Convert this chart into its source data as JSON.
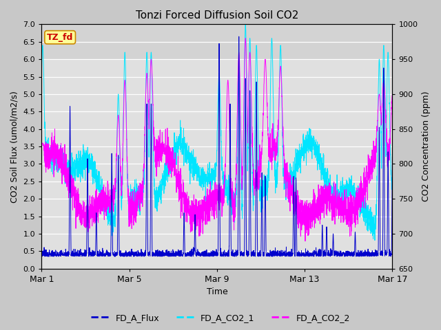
{
  "title": "Tonzi Forced Diffusion Soil CO2",
  "xlabel": "Time",
  "ylabel_left": "CO2 Soil Flux (umol/m2/s)",
  "ylabel_right": "CO2 Concentration (ppm)",
  "ylim_left": [
    0.0,
    7.0
  ],
  "ylim_right": [
    650,
    1000
  ],
  "xtick_labels": [
    "Mar 1",
    "Mar 5",
    "Mar 9",
    "Mar 13",
    "Mar 17"
  ],
  "legend_labels": [
    "FD_A_Flux",
    "FD_A_CO2_1",
    "FD_A_CO2_2"
  ],
  "annotation_text": "TZ_fd",
  "annotation_bg": "#ffff99",
  "annotation_border": "#cc8800",
  "annotation_text_color": "#cc0000",
  "flux_color": "#0000cc",
  "co2_1_color": "#00e5ff",
  "co2_2_color": "#ff00ff",
  "fig_bg_color": "#c8c8c8",
  "plot_bg_color": "#e0e0e0",
  "plot_bg_upper": "#d0d0d0",
  "grid_color": "#ffffff",
  "n_points": 3000,
  "days": 16,
  "seed": 12345
}
